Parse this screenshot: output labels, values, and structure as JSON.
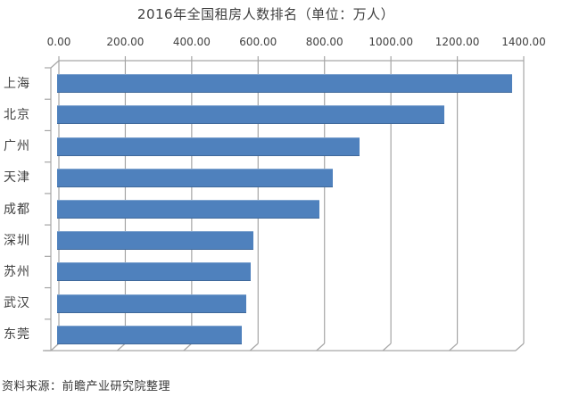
{
  "chart": {
    "title": "2016年全国租房人数排名（单位：万人）",
    "source_note": "资料来源：前瞻产业研究院整理"
  },
  "chart_data": {
    "type": "bar",
    "orientation": "horizontal",
    "style": "pseudo-3d",
    "title": "2016年全国租房人数排名（单位：万人）",
    "unit": "万人",
    "categories": [
      "上海",
      "北京",
      "广州",
      "天津",
      "成都",
      "深圳",
      "苏州",
      "武汉",
      "东莞"
    ],
    "values": [
      1370,
      1165,
      910,
      830,
      790,
      590,
      582,
      569,
      556
    ],
    "x_ticks": [
      0,
      200,
      400,
      600,
      800,
      1000,
      1200,
      1400
    ],
    "x_tick_labels": [
      "0.00",
      "200.00",
      "400.00",
      "600.00",
      "800.00",
      "1000.00",
      "1200.00",
      "1400.00"
    ],
    "xlim": [
      0,
      1400
    ],
    "value_axis_position": "top",
    "grid": true,
    "legend": "none",
    "bar_color": "#4f81bd",
    "gridline_color": "#a6a6a6",
    "text_color": "#404040",
    "source": "资料来源：前瞻产业研究院整理"
  }
}
